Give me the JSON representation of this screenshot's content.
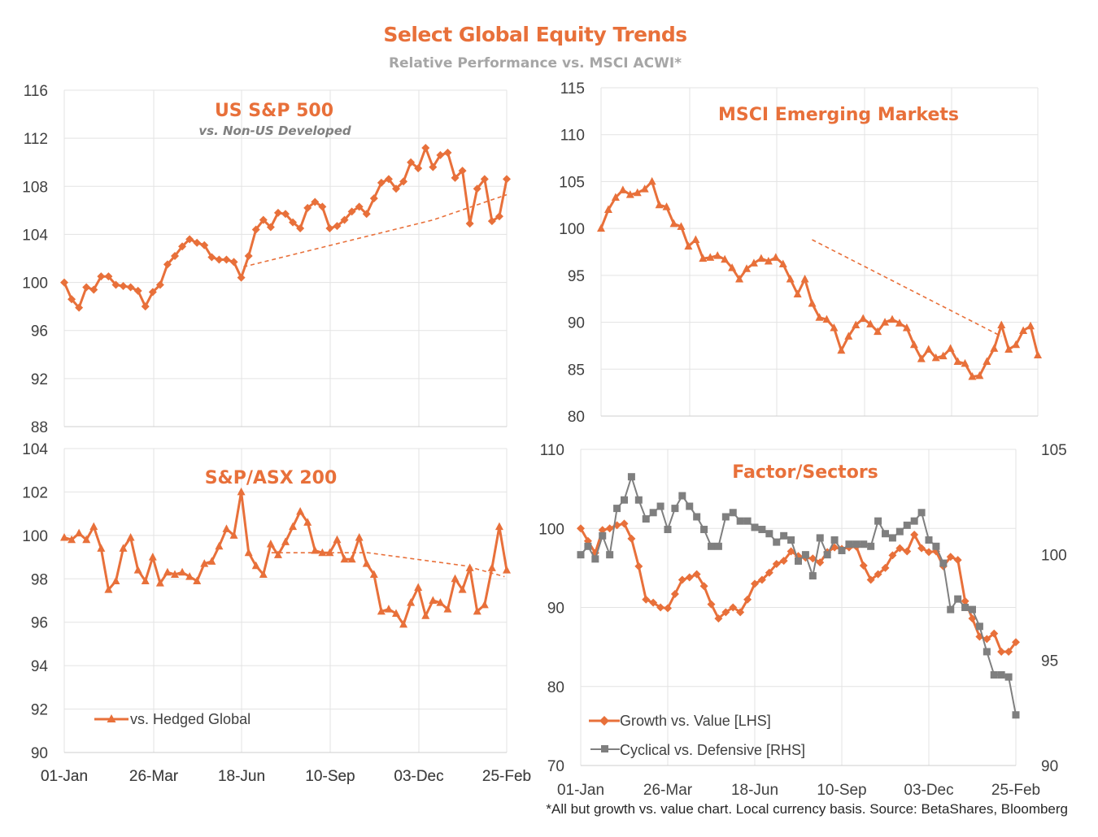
{
  "title": "Select Global Equity Trends",
  "subtitle": "Relative Performance vs. MSCI ACWI*",
  "footnote": "*All but growth vs. value chart. Local currency basis. Source: BetaShares, Bloomberg",
  "colors": {
    "orange": "#E8703A",
    "gray": "#7F7F7F",
    "grid": "#e3e3e3",
    "text": "#404040"
  },
  "chart_data": [
    {
      "type": "line",
      "title": "US S&P 500",
      "subtitle": "vs. Non-US Developed",
      "xlabels": [
        "01-Jan",
        "26-Mar",
        "18-Jun",
        "10-Sep",
        "03-Dec",
        "25-Feb"
      ],
      "ylim": [
        88,
        116
      ],
      "yticks": [
        88,
        92,
        96,
        100,
        104,
        108,
        112,
        116
      ],
      "grid": true,
      "series": [
        {
          "marker": "diamond",
          "values": [
            100.0,
            98.6,
            97.9,
            99.6,
            99.4,
            100.5,
            100.5,
            99.8,
            99.7,
            99.6,
            99.3,
            98.0,
            99.2,
            99.8,
            101.5,
            102.2,
            103.0,
            103.6,
            103.3,
            103.1,
            102.1,
            101.9,
            101.9,
            101.7,
            100.4,
            102.2,
            104.4,
            105.2,
            104.6,
            105.8,
            105.7,
            105.0,
            104.5,
            106.2,
            106.7,
            106.3,
            104.5,
            104.7,
            105.2,
            105.9,
            106.3,
            105.7,
            107.0,
            108.3,
            108.6,
            107.8,
            108.4,
            110.0,
            109.5,
            111.2,
            109.6,
            110.6,
            110.8,
            108.7,
            109.3,
            104.9,
            107.8,
            108.6,
            105.1,
            105.5,
            108.6
          ]
        },
        {
          "style": "dashed",
          "x": [
            24.3,
            50,
            60
          ],
          "values": [
            101.3,
            105.2,
            107.3
          ]
        }
      ]
    },
    {
      "type": "line",
      "title": "MSCI Emerging Markets",
      "xlabels": [
        "01-Jan",
        "26-Mar",
        "18-Jun",
        "10-Sep",
        "03-Dec",
        "25-Feb"
      ],
      "ylim": [
        80,
        115
      ],
      "yticks": [
        80,
        85,
        90,
        95,
        100,
        105,
        110,
        115
      ],
      "grid": true,
      "series": [
        {
          "marker": "triangle",
          "values": [
            100.0,
            102.0,
            103.3,
            104.1,
            103.6,
            103.8,
            104.2,
            105.0,
            102.5,
            102.3,
            100.5,
            100.2,
            98.1,
            98.8,
            96.8,
            96.9,
            97.1,
            96.7,
            95.8,
            94.6,
            95.7,
            96.3,
            96.8,
            96.5,
            96.9,
            96.2,
            94.6,
            93.0,
            94.6,
            92.0,
            90.5,
            90.3,
            89.4,
            87.0,
            88.5,
            89.7,
            90.4,
            89.8,
            89.0,
            90.0,
            90.3,
            89.9,
            89.4,
            87.6,
            86.1,
            87.1,
            86.2,
            86.4,
            87.2,
            85.8,
            85.6,
            84.2,
            84.3,
            85.8,
            87.2,
            89.7,
            87.1,
            87.6,
            89.1,
            89.6,
            86.5
          ]
        },
        {
          "style": "dashed",
          "x": [
            29,
            55
          ],
          "values": [
            98.8,
            88.5
          ]
        }
      ]
    },
    {
      "type": "line",
      "title": "S&P/ASX 200",
      "xlabels": [
        "01-Jan",
        "26-Mar",
        "18-Jun",
        "10-Sep",
        "03-Dec",
        "25-Feb"
      ],
      "ylim": [
        90,
        104
      ],
      "yticks": [
        90,
        92,
        94,
        96,
        98,
        100,
        102,
        104
      ],
      "grid": true,
      "legend": "vs. Hedged Global",
      "series": [
        {
          "name": "vs. Hedged Global",
          "marker": "triangle",
          "values": [
            99.9,
            99.8,
            100.1,
            99.8,
            100.4,
            99.4,
            97.5,
            97.9,
            99.4,
            99.9,
            98.4,
            97.9,
            99.0,
            97.8,
            98.3,
            98.2,
            98.3,
            98.1,
            97.9,
            98.7,
            98.8,
            99.5,
            100.3,
            100.0,
            102.0,
            99.2,
            98.6,
            98.2,
            99.6,
            99.1,
            99.7,
            100.4,
            101.1,
            100.6,
            99.3,
            99.2,
            99.2,
            99.8,
            98.9,
            98.9,
            99.9,
            98.7,
            98.2,
            96.5,
            96.6,
            96.4,
            95.9,
            96.9,
            97.6,
            96.3,
            97.0,
            96.9,
            96.6,
            98.0,
            97.5,
            98.5,
            96.5,
            96.8,
            98.5,
            100.4,
            98.4
          ]
        },
        {
          "style": "dashed",
          "x": [
            28.1,
            41.2,
            54.4,
            59.7
          ],
          "values": [
            99.2,
            99.2,
            98.6,
            98.1
          ]
        }
      ]
    },
    {
      "type": "line",
      "title": "Factor/Sectors",
      "xlabels": [
        "01-Jan",
        "26-Mar",
        "18-Jun",
        "10-Sep",
        "03-Dec",
        "25-Feb"
      ],
      "ylim": [
        70,
        110
      ],
      "yticks": [
        70,
        80,
        90,
        100,
        110
      ],
      "ylim_right": [
        90,
        105
      ],
      "yticks_right": [
        90,
        95,
        100,
        105
      ],
      "grid": true,
      "legend": [
        "Growth vs. Value [LHS]",
        "Cyclical vs. Defensive [RHS]"
      ],
      "series": [
        {
          "name": "Growth vs. Value [LHS]",
          "axis": "left",
          "marker": "diamond",
          "color": "orange",
          "values": [
            100.0,
            98.4,
            96.9,
            99.8,
            100.0,
            100.4,
            100.6,
            98.7,
            95.2,
            91.0,
            90.6,
            90.0,
            89.9,
            91.7,
            93.5,
            93.8,
            94.2,
            92.7,
            90.4,
            88.6,
            89.4,
            90.0,
            89.4,
            91.0,
            93.0,
            93.5,
            94.4,
            95.5,
            95.9,
            97.1,
            96.5,
            96.3,
            96.2,
            95.7,
            97.0,
            97.6,
            97.4,
            97.6,
            97.7,
            95.3,
            93.5,
            94.2,
            95.0,
            96.6,
            97.5,
            97.1,
            99.2,
            97.5,
            97.0,
            97.1,
            95.2,
            96.4,
            96.0,
            90.8,
            88.6,
            86.3,
            86.0,
            86.7,
            84.4,
            84.4,
            85.6
          ]
        },
        {
          "name": "Cyclical vs. Defensive [RHS]",
          "axis": "right",
          "marker": "square",
          "color": "gray",
          "values": [
            100.0,
            100.4,
            99.8,
            100.9,
            100.0,
            102.2,
            102.6,
            103.7,
            102.6,
            101.7,
            102.0,
            102.3,
            101.2,
            102.2,
            102.8,
            102.3,
            101.8,
            101.2,
            100.4,
            100.4,
            101.8,
            102.0,
            101.6,
            101.6,
            101.3,
            101.2,
            101.0,
            100.6,
            100.9,
            100.7,
            99.7,
            100.0,
            99.0,
            100.8,
            100.0,
            100.7,
            100.2,
            100.5,
            100.5,
            100.5,
            100.4,
            101.6,
            101.0,
            100.8,
            101.1,
            101.4,
            101.6,
            102.0,
            100.7,
            100.4,
            99.6,
            97.4,
            97.9,
            97.5,
            97.4,
            96.6,
            95.4,
            94.3,
            94.3,
            94.2,
            92.4
          ]
        }
      ]
    }
  ]
}
